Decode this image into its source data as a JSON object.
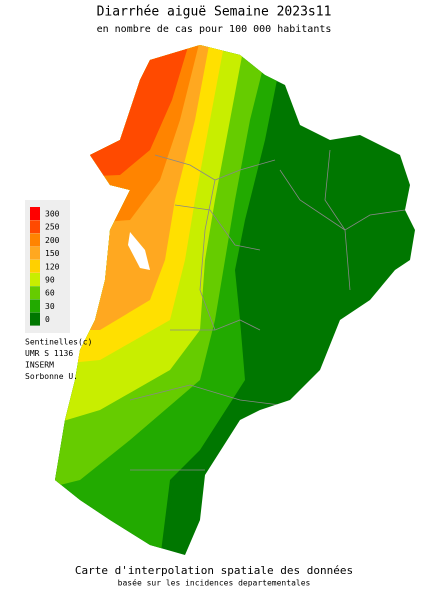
{
  "header": {
    "title": "Diarrhée aiguë Semaine 2023s11",
    "subtitle": "en nombre de cas pour 100 000 habitants"
  },
  "legend": {
    "items": [
      {
        "label": "300",
        "color": "#ff0000"
      },
      {
        "label": "250",
        "color": "#ff4a00"
      },
      {
        "label": "200",
        "color": "#ff8400"
      },
      {
        "label": "150",
        "color": "#ffa820"
      },
      {
        "label": "120",
        "color": "#ffd000"
      },
      {
        "label": "90",
        "color": "#c8ee00"
      },
      {
        "label": "60",
        "color": "#66cc00"
      },
      {
        "label": "30",
        "color": "#22aa00"
      },
      {
        "label": "0",
        "color": "#007700"
      }
    ]
  },
  "credits": [
    "Sentinelles(c)",
    "UMR S 1136",
    "INSERM",
    "Sorbonne U."
  ],
  "footer": {
    "line1": "Carte d'interpolation spatiale des données",
    "line2": "basée sur les incidences departementales"
  }
}
